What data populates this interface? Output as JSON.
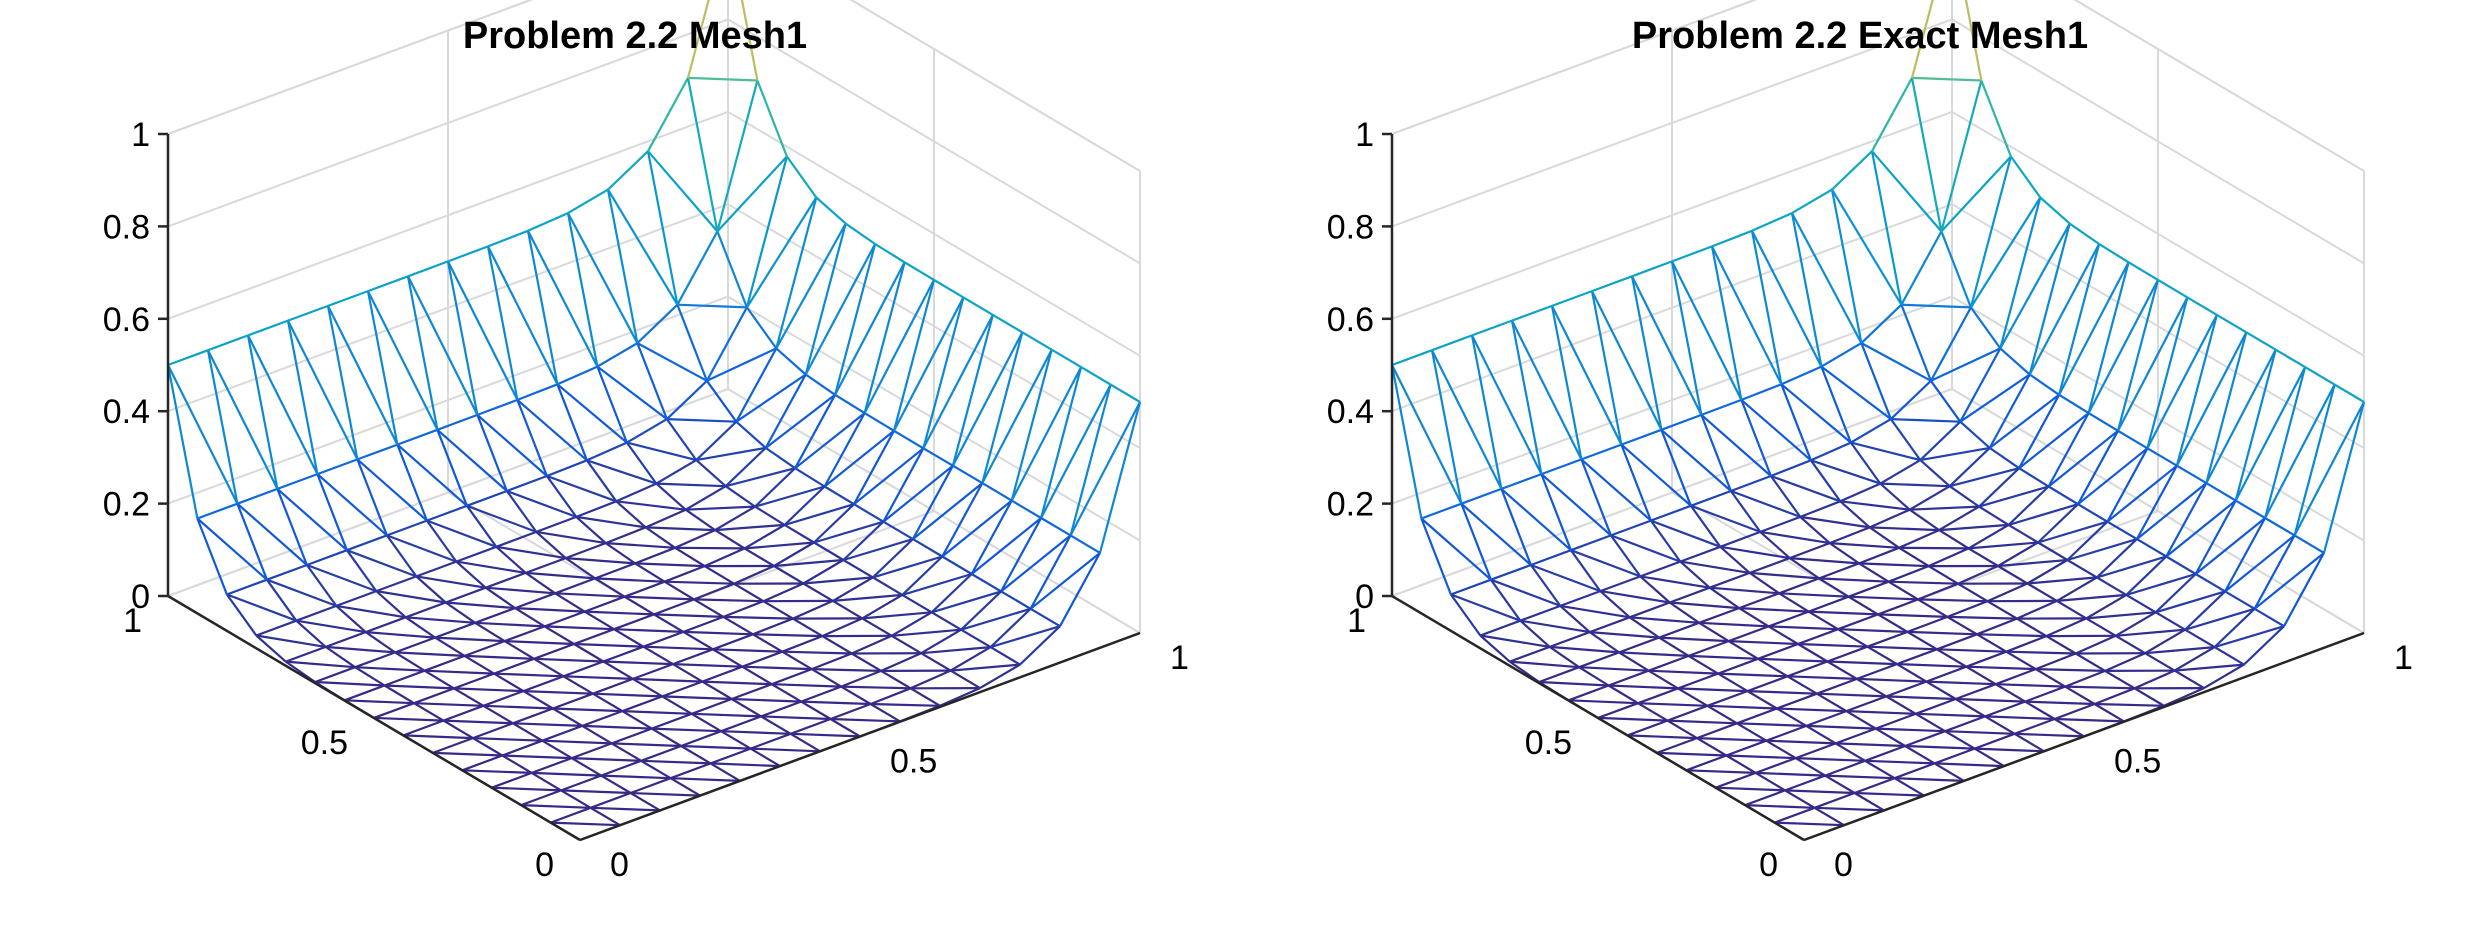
{
  "chart_data": [
    {
      "type": "surface",
      "title": "Problem 2.2 Mesh1",
      "xlabel": "",
      "ylabel": "",
      "zlabel": "",
      "xlim": [
        0,
        1
      ],
      "ylim": [
        0,
        1
      ],
      "zlim": [
        0,
        1
      ],
      "x_ticks": [
        "0",
        "0.5",
        "1"
      ],
      "y_ticks": [
        "0",
        "0.5",
        "1"
      ],
      "z_ticks": [
        "0",
        "0.2",
        "0.4",
        "0.6",
        "0.8",
        "1"
      ],
      "grid": true,
      "mesh": "triangular, 15 x 15 nodes on [0,1]x[0,1]",
      "colormap": "parula",
      "surface_profile": {
        "corner_value_at_x1_y1": 1.0,
        "value_at_x0_y1": 0.5,
        "value_at_x1_y0": 0.5,
        "value_at_x0_y0": 0.0
      }
    },
    {
      "type": "surface",
      "title": "Problem 2.2 Exact Mesh1",
      "xlabel": "",
      "ylabel": "",
      "zlabel": "",
      "xlim": [
        0,
        1
      ],
      "ylim": [
        0,
        1
      ],
      "zlim": [
        0,
        1
      ],
      "x_ticks": [
        "0",
        "0.5",
        "1"
      ],
      "y_ticks": [
        "0",
        "0.5",
        "1"
      ],
      "z_ticks": [
        "0",
        "0.2",
        "0.4",
        "0.6",
        "0.8",
        "1"
      ],
      "grid": true,
      "mesh": "triangular, 15 x 15 nodes on [0,1]x[0,1]",
      "colormap": "parula",
      "surface_profile": {
        "corner_value_at_x1_y1": 1.0,
        "value_at_x0_y1": 0.5,
        "value_at_x1_y0": 0.5,
        "value_at_x0_y0": 0.0
      }
    }
  ],
  "colors": {
    "grid": "#d9d9d9",
    "axes": "#262626",
    "background": "#ffffff"
  }
}
